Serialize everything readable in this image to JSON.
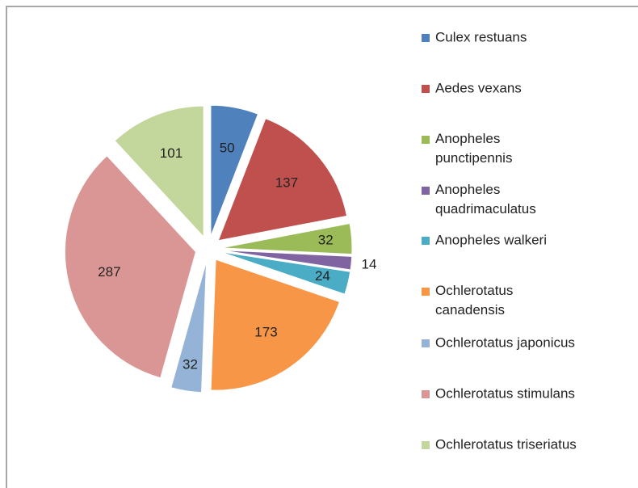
{
  "chart_data": {
    "type": "pie",
    "categories": [
      "Culex restuans",
      "Aedes vexans",
      "Anopheles punctipennis",
      "Anopheles quadrimaculatus",
      "Anopheles walkeri",
      "Ochlerotatus canadensis",
      "Ochlerotatus japonicus",
      "Ochlerotatus stimulans",
      "Ochlerotatus triseriatus"
    ],
    "values": [
      50,
      137,
      32,
      14,
      24,
      173,
      32,
      287,
      101
    ],
    "colors": [
      "#4f81bd",
      "#c0504d",
      "#9bbb59",
      "#8064a2",
      "#4bacc6",
      "#f79646",
      "#95b3d7",
      "#d99694",
      "#c3d69b"
    ],
    "legend": "right"
  }
}
